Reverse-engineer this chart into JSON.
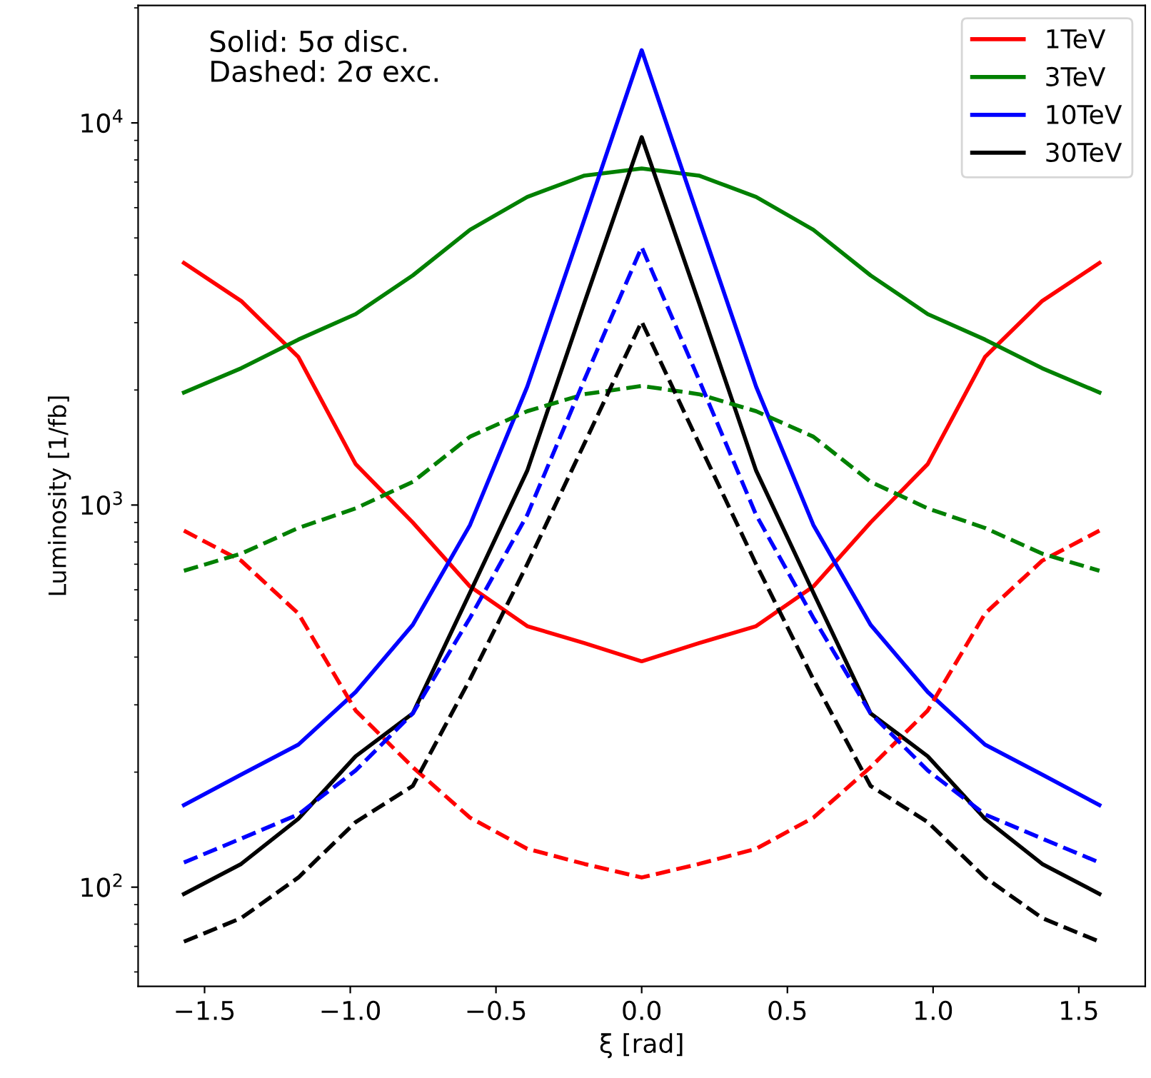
{
  "chart_data": {
    "type": "line",
    "xlabel": "ξ [rad]",
    "ylabel": "Luminosity [1/fb]",
    "annotations": [
      "Solid: 5σ disc.\nDashed: 2σ exc."
    ],
    "x": [
      -1.5708,
      -1.3744,
      -1.1781,
      -0.9817,
      -0.7854,
      -0.589,
      -0.3927,
      -0.1963,
      0,
      0.1963,
      0.3927,
      0.589,
      0.7854,
      0.9817,
      1.1781,
      1.3744,
      1.5708
    ],
    "series": [
      {
        "name": "1TeV",
        "color": "#ff0000",
        "line_style": "solid",
        "values": [
          4300,
          3420,
          2440,
          1280,
          900,
          612,
          482,
          435,
          390,
          435,
          482,
          612,
          900,
          1280,
          2440,
          3420,
          4300
        ]
      },
      {
        "name": "3TeV",
        "color": "#008000",
        "line_style": "solid",
        "values": [
          1970,
          2280,
          2710,
          3160,
          3990,
          5250,
          6400,
          7280,
          7600,
          7280,
          6400,
          5250,
          3990,
          3160,
          2710,
          2280,
          1970
        ]
      },
      {
        "name": "10TeV",
        "color": "#0000ff",
        "line_style": "solid",
        "values": [
          164,
          197,
          236,
          324,
          486,
          887,
          2040,
          5600,
          15500,
          5600,
          2040,
          887,
          486,
          324,
          236,
          197,
          164
        ]
      },
      {
        "name": "30TeV",
        "color": "#000000",
        "line_style": "solid",
        "values": [
          96,
          115,
          151,
          220,
          285,
          590,
          1230,
          3390,
          9180,
          3390,
          1230,
          590,
          285,
          220,
          151,
          115,
          96
        ]
      },
      {
        "color": "#ff0000",
        "line_style": "dashed",
        "values": [
          857,
          715,
          520,
          290,
          206,
          152,
          126,
          115,
          106,
          115,
          126,
          152,
          206,
          290,
          520,
          715,
          857
        ]
      },
      {
        "color": "#008000",
        "line_style": "dashed",
        "values": [
          673,
          746,
          871,
          980,
          1150,
          1510,
          1760,
          1950,
          2050,
          1950,
          1760,
          1510,
          1150,
          980,
          871,
          746,
          673
        ]
      },
      {
        "color": "#0000ff",
        "line_style": "dashed",
        "values": [
          116,
          134,
          155,
          202,
          285,
          507,
          942,
          2130,
          4730,
          2130,
          942,
          507,
          285,
          202,
          155,
          134,
          116
        ]
      },
      {
        "color": "#000000",
        "line_style": "dashed",
        "values": [
          72,
          83,
          106,
          148,
          184,
          350,
          700,
          1450,
          3020,
          1450,
          700,
          350,
          184,
          148,
          106,
          83,
          72
        ]
      }
    ],
    "log": "y",
    "xlim": [
      -1.728,
      1.728
    ],
    "ylim": [
      55,
      20300
    ],
    "xticks": [
      {
        "value": -1.5,
        "label": "−1.5"
      },
      {
        "value": -1.0,
        "label": "−1.0"
      },
      {
        "value": -0.5,
        "label": "−0.5"
      },
      {
        "value": 0,
        "label": "0.0"
      },
      {
        "value": 0.5,
        "label": "0.5"
      },
      {
        "value": 1.0,
        "label": "1.0"
      },
      {
        "value": 1.5,
        "label": "1.5"
      }
    ],
    "yticks": [
      {
        "value": 100,
        "label": "10$^{2}$"
      },
      {
        "value": 1000,
        "label": "10$^{3}$"
      },
      {
        "value": 10000,
        "label": "10$^{4}$"
      }
    ],
    "grid": false,
    "legend": "top right"
  }
}
